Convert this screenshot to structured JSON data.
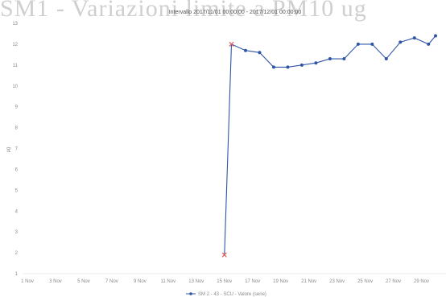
{
  "page": {
    "background_title": "SM1 - Variazioni limite a PM10 ug"
  },
  "chart_data": {
    "type": "line",
    "title": "",
    "subtitle": "Intervallo 2017/11/01 00:00:00 - 2017/12/01 00:00:00",
    "xlabel": "",
    "ylabel": "µg",
    "ylim": [
      1,
      13
    ],
    "yticks": [
      1,
      2,
      3,
      4,
      5,
      6,
      7,
      8,
      9,
      10,
      11,
      12,
      13
    ],
    "xlim": [
      1,
      30
    ],
    "xticks": [
      1,
      3,
      5,
      7,
      9,
      11,
      13,
      15,
      17,
      19,
      21,
      23,
      25,
      27,
      29
    ],
    "xtick_labels": [
      "1 Nov",
      "3 Nov",
      "5 Nov",
      "7 Nov",
      "9 Nov",
      "11 Nov",
      "13 Nov",
      "15 Nov",
      "17 Nov",
      "19 Nov",
      "21 Nov",
      "23 Nov",
      "25 Nov",
      "27 Nov",
      "29 Nov"
    ],
    "grid": false,
    "legend_position": "bottom",
    "series": [
      {
        "name": "SM 2 - 43 - SCU - Valore (serie)",
        "color": "#2f55a6",
        "x": [
          15,
          15.5,
          16.5,
          17.5,
          18.5,
          19.5,
          20.5,
          21.5,
          22.5,
          23.5,
          24.5,
          25.5,
          26.5,
          27.5,
          28.5,
          29.5,
          30
        ],
        "y": [
          1.9,
          12.0,
          11.7,
          11.6,
          10.9,
          10.9,
          11.0,
          11.1,
          11.3,
          11.3,
          12.0,
          12.0,
          11.3,
          12.1,
          12.3,
          12.0,
          12.4
        ]
      }
    ],
    "markers": [
      {
        "x": 15,
        "y": 1.9,
        "color": "#e05a5a"
      },
      {
        "x": 15.5,
        "y": 12.0,
        "color": "#e05a5a"
      }
    ]
  }
}
